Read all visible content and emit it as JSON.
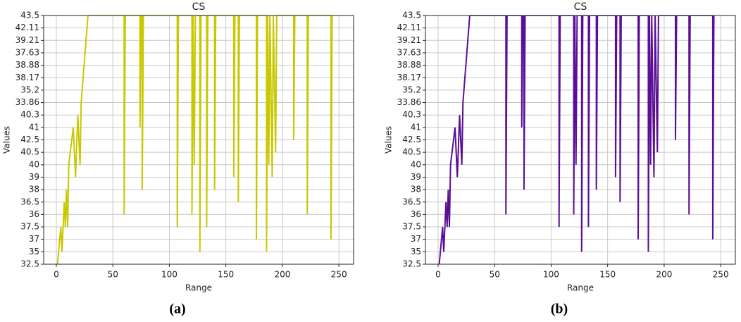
{
  "chart_data": [
    {
      "type": "line",
      "title": "CS",
      "xlabel": "Range",
      "ylabel": "Values",
      "caption": "(a)",
      "color": "#c8c800",
      "grid": true,
      "xlim": [
        -11.2,
        263
      ],
      "xticks": [
        0,
        50,
        100,
        150,
        200,
        250
      ],
      "ylim": [
        0,
        20
      ],
      "yticks": [
        {
          "value": 0,
          "label": "32.5"
        },
        {
          "value": 1,
          "label": "35"
        },
        {
          "value": 2,
          "label": "37"
        },
        {
          "value": 3,
          "label": "37.5"
        },
        {
          "value": 4,
          "label": "36"
        },
        {
          "value": 5,
          "label": "36.5"
        },
        {
          "value": 6,
          "label": "38"
        },
        {
          "value": 7,
          "label": "39"
        },
        {
          "value": 8,
          "label": "40"
        },
        {
          "value": 9,
          "label": "40.5"
        },
        {
          "value": 10,
          "label": "42.5"
        },
        {
          "value": 11,
          "label": "41"
        },
        {
          "value": 12,
          "label": "40.3"
        },
        {
          "value": 13,
          "label": "33.86"
        },
        {
          "value": 14,
          "label": "35.2"
        },
        {
          "value": 15,
          "label": "38.17"
        },
        {
          "value": 16,
          "label": "38.88"
        },
        {
          "value": 17,
          "label": "37.63"
        },
        {
          "value": 18,
          "label": "39.21"
        },
        {
          "value": 19,
          "label": "42.11"
        },
        {
          "value": 20,
          "label": "43.5"
        }
      ],
      "x": [
        1,
        4,
        5,
        7,
        8,
        9,
        10,
        11,
        15,
        17,
        19,
        21,
        22,
        28,
        60,
        60,
        61,
        74,
        74,
        75,
        76,
        76,
        77,
        107,
        107,
        108,
        120,
        120,
        121,
        122,
        123,
        127,
        127,
        128,
        133,
        133,
        134,
        140,
        140,
        141,
        157,
        157,
        158,
        161,
        161,
        162,
        177,
        177,
        178,
        186,
        186,
        187,
        188,
        189,
        191,
        192,
        194,
        195,
        210,
        210,
        211,
        222,
        222,
        223,
        243,
        243,
        244
      ],
      "values": [
        0,
        3,
        1,
        5,
        3,
        6,
        3,
        8,
        11,
        7,
        12,
        8,
        13,
        20,
        20,
        4,
        20,
        20,
        11,
        20,
        20,
        6,
        20,
        20,
        3,
        20,
        20,
        4,
        20,
        8,
        20,
        20,
        1,
        20,
        20,
        3,
        20,
        20,
        6,
        20,
        20,
        7,
        20,
        20,
        5,
        20,
        20,
        2,
        20,
        20,
        1,
        20,
        8,
        20,
        7,
        20,
        9,
        20,
        20,
        10,
        20,
        20,
        4,
        20,
        20,
        2,
        20
      ]
    },
    {
      "type": "line",
      "title": "CS",
      "xlabel": "Range",
      "ylabel": "Values",
      "caption": "(b)",
      "color": "#5a0f96",
      "grid": true,
      "xlim": [
        -11.2,
        263
      ],
      "xticks": [
        0,
        50,
        100,
        150,
        200,
        250
      ],
      "ylim": [
        0,
        20
      ],
      "yticks": [
        {
          "value": 0,
          "label": "32.5"
        },
        {
          "value": 1,
          "label": "35"
        },
        {
          "value": 2,
          "label": "37"
        },
        {
          "value": 3,
          "label": "37.5"
        },
        {
          "value": 4,
          "label": "36"
        },
        {
          "value": 5,
          "label": "36.5"
        },
        {
          "value": 6,
          "label": "38"
        },
        {
          "value": 7,
          "label": "39"
        },
        {
          "value": 8,
          "label": "40"
        },
        {
          "value": 9,
          "label": "40.5"
        },
        {
          "value": 10,
          "label": "42.5"
        },
        {
          "value": 11,
          "label": "41"
        },
        {
          "value": 12,
          "label": "40.3"
        },
        {
          "value": 13,
          "label": "33.86"
        },
        {
          "value": 14,
          "label": "35.2"
        },
        {
          "value": 15,
          "label": "38.17"
        },
        {
          "value": 16,
          "label": "38.88"
        },
        {
          "value": 17,
          "label": "37.63"
        },
        {
          "value": 18,
          "label": "39.21"
        },
        {
          "value": 19,
          "label": "42.11"
        },
        {
          "value": 20,
          "label": "43.5"
        }
      ],
      "x": [
        1,
        4,
        5,
        7,
        8,
        9,
        10,
        11,
        15,
        17,
        19,
        21,
        22,
        28,
        60,
        60,
        61,
        74,
        74,
        75,
        76,
        76,
        77,
        107,
        107,
        108,
        120,
        120,
        121,
        122,
        123,
        127,
        127,
        128,
        133,
        133,
        134,
        140,
        140,
        141,
        157,
        157,
        158,
        161,
        161,
        162,
        177,
        177,
        178,
        186,
        186,
        187,
        188,
        189,
        191,
        192,
        194,
        195,
        210,
        210,
        211,
        222,
        222,
        223,
        243,
        243,
        244
      ],
      "values": [
        0,
        3,
        1,
        5,
        3,
        6,
        3,
        8,
        11,
        7,
        12,
        8,
        13,
        20,
        20,
        4,
        20,
        20,
        11,
        20,
        20,
        6,
        20,
        20,
        3,
        20,
        20,
        4,
        20,
        8,
        20,
        20,
        1,
        20,
        20,
        3,
        20,
        20,
        6,
        20,
        20,
        7,
        20,
        20,
        5,
        20,
        20,
        2,
        20,
        20,
        1,
        20,
        8,
        20,
        7,
        20,
        9,
        20,
        20,
        10,
        20,
        20,
        4,
        20,
        20,
        2,
        20
      ]
    }
  ]
}
